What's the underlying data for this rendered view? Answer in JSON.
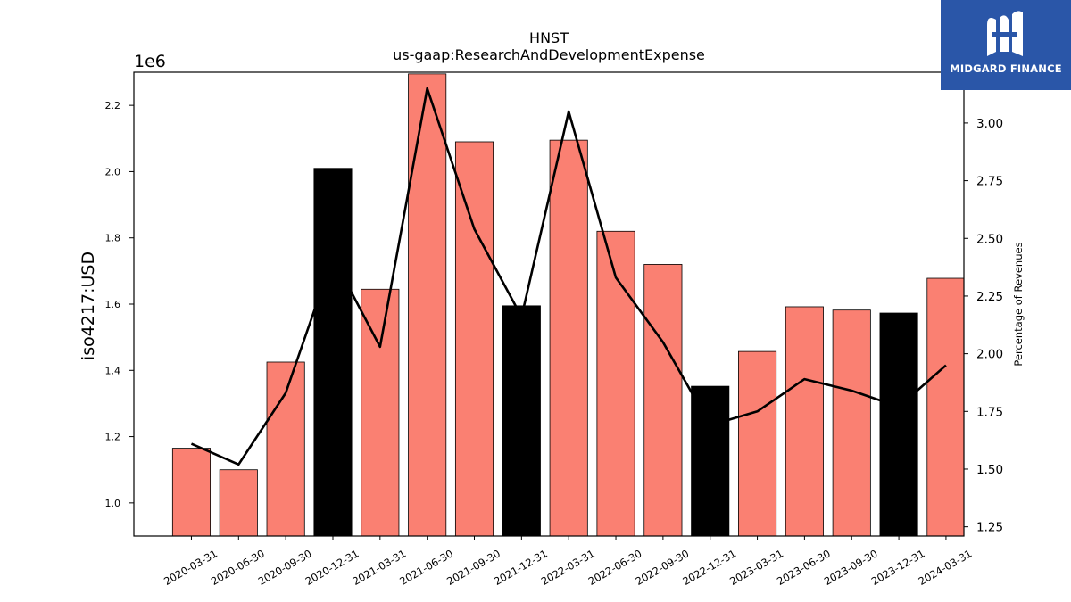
{
  "logo": {
    "text": "MIDGARD FINANCE"
  },
  "chart_data": {
    "type": "bar",
    "title": "HNST",
    "subtitle": "us-gaap:ResearchAndDevelopmentExpense",
    "ylabel": "iso4217:USD",
    "y_scale_label": "1e6",
    "y2label": "Percentage of Revenues",
    "categories": [
      "2020-03-31",
      "2020-06-30",
      "2020-09-30",
      "2020-12-31",
      "2021-03-31",
      "2021-06-30",
      "2021-09-30",
      "2021-12-31",
      "2022-03-31",
      "2022-06-30",
      "2022-09-30",
      "2022-12-31",
      "2023-03-31",
      "2023-06-30",
      "2023-09-30",
      "2023-12-31",
      "2024-03-31"
    ],
    "series": [
      {
        "values": [
          1165000,
          1100000,
          1425000,
          2010000,
          1645000,
          2295000,
          2090000,
          1595000,
          2095000,
          1820000,
          1720000,
          1352000,
          1457000,
          1592000,
          1582000,
          1573000,
          1678000
        ],
        "colors": [
          "#fa8072",
          "#fa8072",
          "#fa8072",
          "#000000",
          "#fa8072",
          "#fa8072",
          "#fa8072",
          "#000000",
          "#fa8072",
          "#fa8072",
          "#fa8072",
          "#000000",
          "#fa8072",
          "#fa8072",
          "#fa8072",
          "#000000",
          "#fa8072"
        ]
      },
      {
        "axis": "right",
        "type": "line",
        "color": "#000000",
        "values": [
          1.61,
          1.52,
          1.83,
          2.42,
          2.03,
          3.15,
          2.54,
          2.16,
          3.05,
          2.33,
          2.05,
          1.69,
          1.75,
          1.89,
          1.84,
          1.77,
          1.95
        ]
      }
    ],
    "ylim": [
      900000,
      2300000
    ],
    "yticks": [
      1000000,
      1200000,
      1400000,
      1600000,
      1800000,
      2000000,
      2200000
    ],
    "ytick_labels": [
      "1.0",
      "1.2",
      "1.4",
      "1.6",
      "1.8",
      "2.0",
      "2.2"
    ],
    "y2lim": [
      1.21,
      3.22
    ],
    "y2ticks": [
      1.25,
      1.5,
      1.75,
      2.0,
      2.25,
      2.5,
      2.75,
      3.0
    ],
    "y2tick_labels": [
      "1.25",
      "1.50",
      "1.75",
      "2.00",
      "2.25",
      "2.50",
      "2.75",
      "3.00"
    ],
    "grid": false,
    "legend": "none"
  }
}
